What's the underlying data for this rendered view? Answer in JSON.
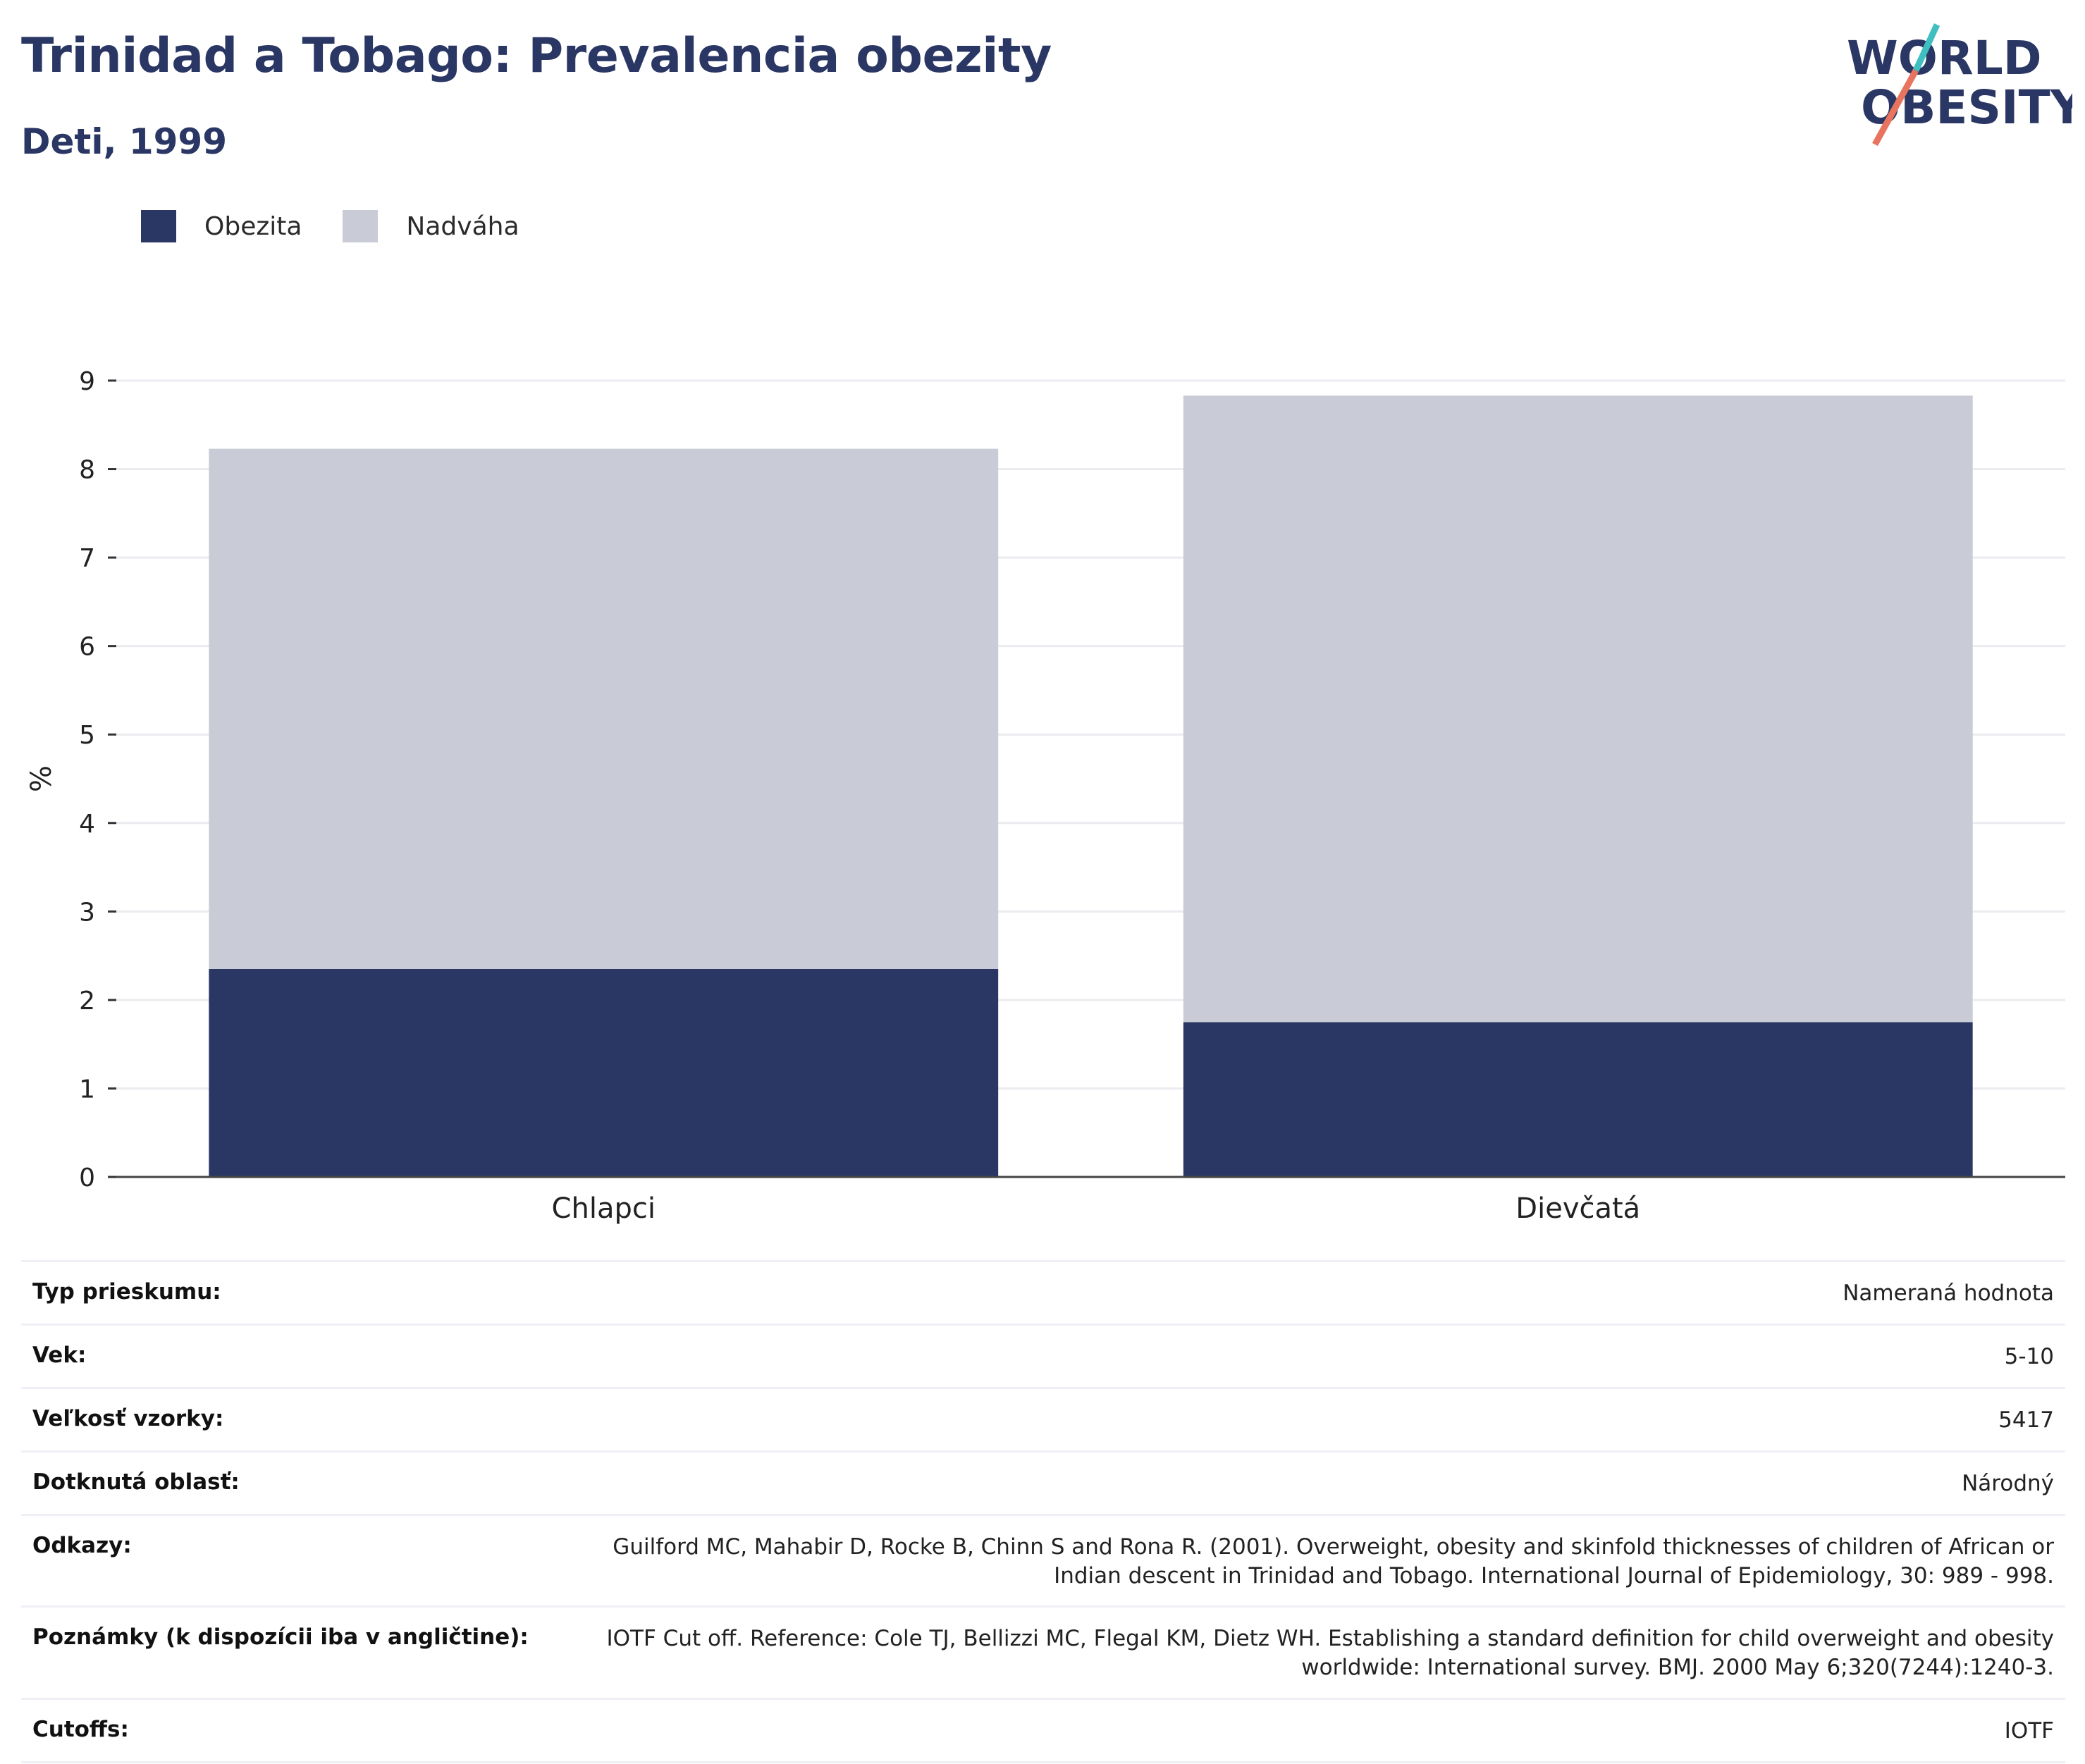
{
  "header": {
    "title": "Trinidad a Tobago: Prevalencia obezity",
    "subtitle": "Deti, 1999"
  },
  "logo": {
    "line1": "WORLD",
    "line2": "OBESITY"
  },
  "colors": {
    "obesity": "#2a3764",
    "overweight": "#c9cbd6",
    "title": "#2a3764",
    "logo_teal": "#3fbfc0",
    "logo_coral": "#e8735e"
  },
  "chart_data": {
    "type": "bar",
    "stacked": true,
    "categories": [
      "Chlapci",
      "Dievčatá"
    ],
    "series": [
      {
        "name": "Obezita",
        "values": [
          2.35,
          1.75
        ]
      },
      {
        "name": "Nadváha",
        "values": [
          5.88,
          7.08
        ]
      }
    ],
    "totals": [
      8.23,
      8.83
    ],
    "ylabel": "%",
    "ylim": [
      0,
      9
    ],
    "yticks": [
      "0",
      "1",
      "2",
      "3",
      "4",
      "5",
      "6",
      "7",
      "8",
      "9"
    ],
    "grid": true,
    "legend_position": "top-left"
  },
  "meta": [
    {
      "label": "Typ prieskumu:",
      "value": "Nameraná hodnota"
    },
    {
      "label": "Vek:",
      "value": "5-10"
    },
    {
      "label": "Veľkosť vzorky:",
      "value": "5417"
    },
    {
      "label": "Dotknutá oblasť:",
      "value": "Národný"
    },
    {
      "label": "Odkazy:",
      "value": "Guilford MC, Mahabir D, Rocke B, Chinn S and Rona R. (2001). Overweight, obesity and skinfold thicknesses of children of African or Indian descent in Trinidad and Tobago. International Journal of Epidemiology, 30: 989 - 998."
    },
    {
      "label": "Poznámky (k dispozícii iba v angličtine):",
      "value": "IOTF Cut off. Reference: Cole TJ, Bellizzi MC, Flegal KM, Dietz WH. Establishing a standard definition for child overweight and obesity worldwide: International survey. BMJ. 2000 May 6;320(7244):1240-3."
    },
    {
      "label": "Cutoffs:",
      "value": "IOTF"
    }
  ]
}
